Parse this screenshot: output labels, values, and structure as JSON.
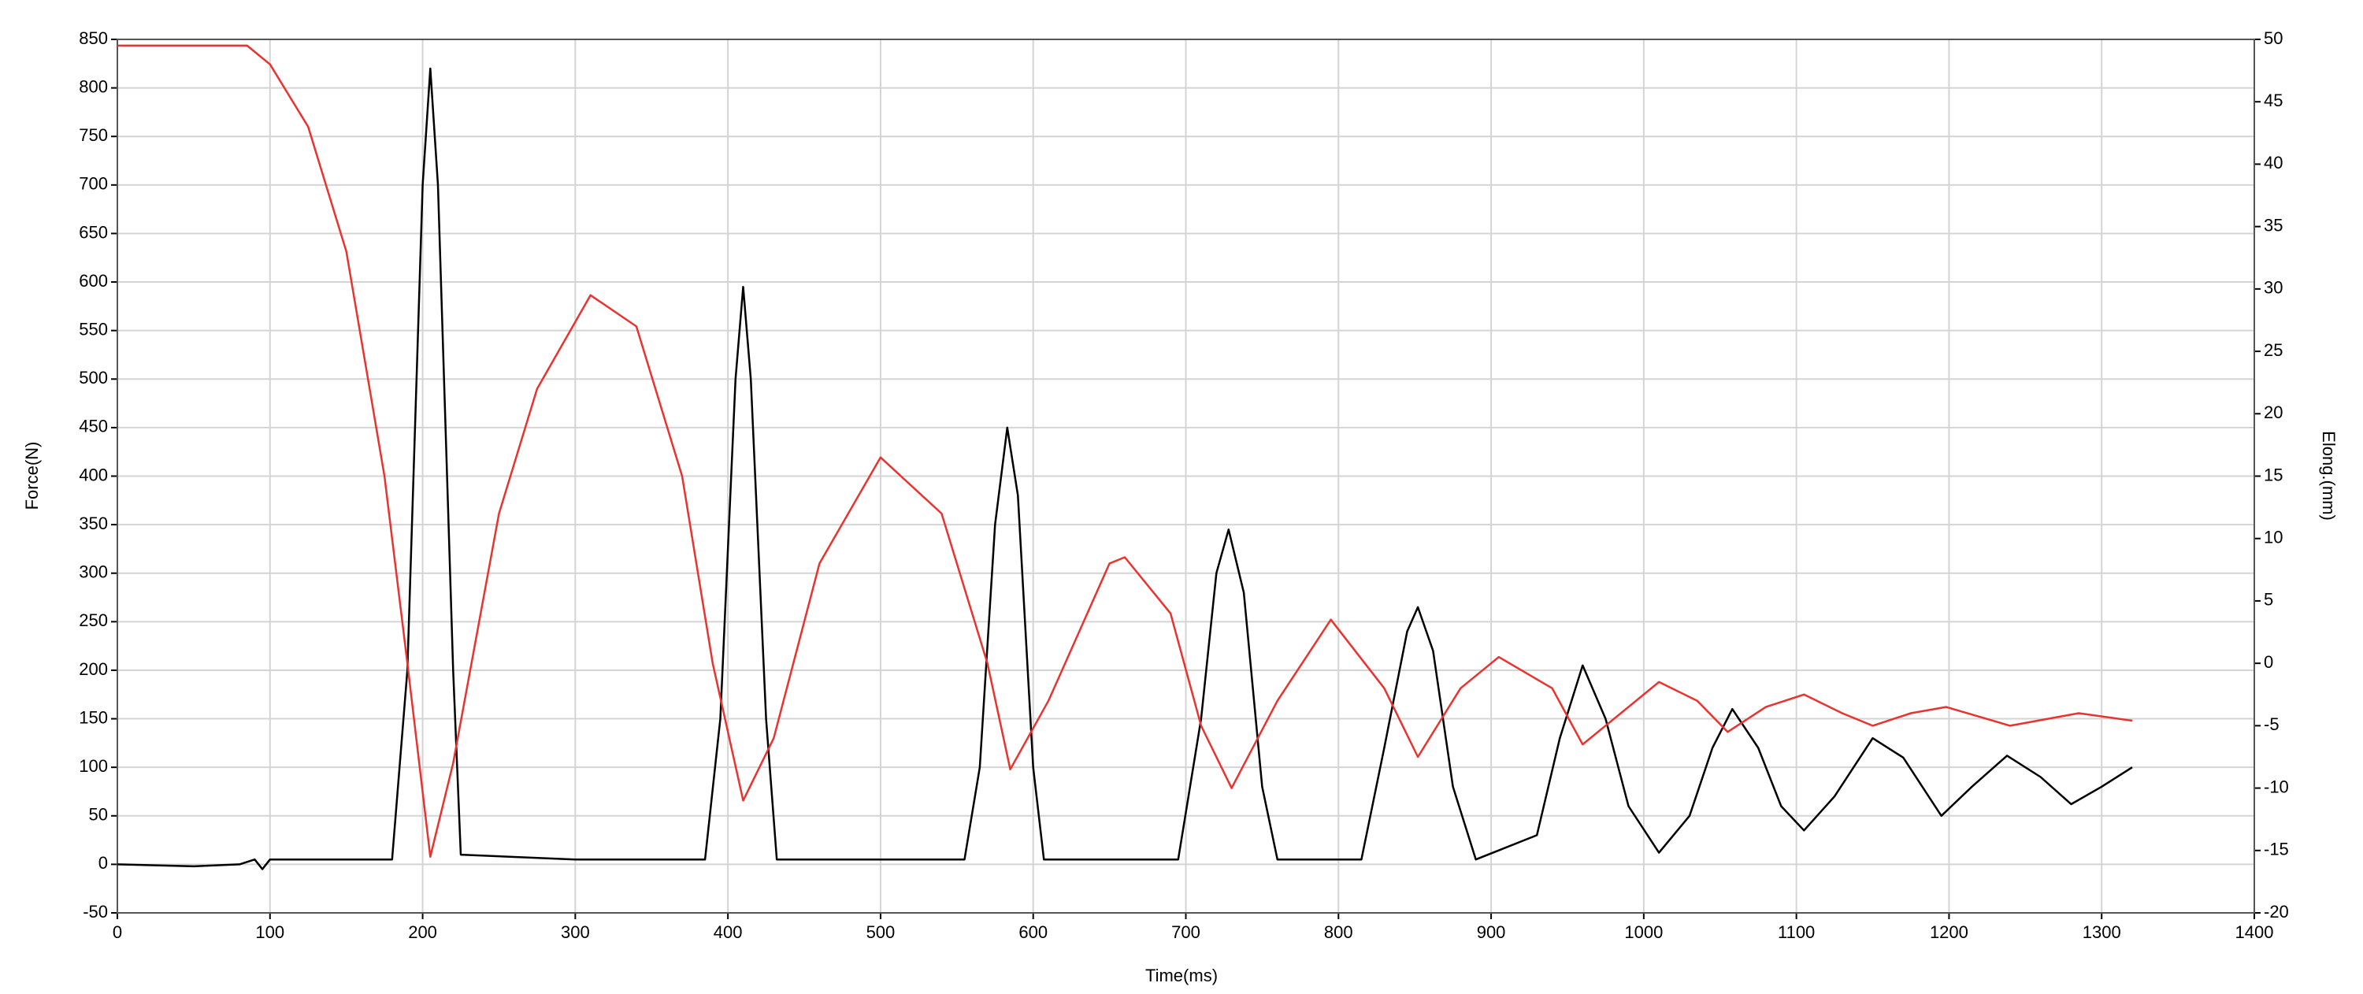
{
  "chart_data": {
    "type": "line",
    "xlabel": "Time(ms)",
    "ylabel": "Force(N)",
    "y2label": "Elong.(mm)",
    "xlim": [
      0,
      1400
    ],
    "xticks": [
      0,
      100,
      200,
      300,
      400,
      500,
      600,
      700,
      800,
      900,
      1000,
      1100,
      1200,
      1300,
      1400
    ],
    "ylim": [
      -50,
      850
    ],
    "yticks": [
      -50,
      0,
      50,
      100,
      150,
      200,
      250,
      300,
      350,
      400,
      450,
      500,
      550,
      600,
      650,
      700,
      750,
      800,
      850
    ],
    "y2lim": [
      -20,
      50
    ],
    "y2ticks": [
      -20,
      -15,
      -10,
      -5,
      0,
      5,
      10,
      15,
      20,
      25,
      30,
      35,
      40,
      45,
      50
    ],
    "grid": true,
    "series": [
      {
        "name": "Force(N)",
        "color": "#000000",
        "axis": "y",
        "x": [
          0,
          50,
          80,
          90,
          95,
          100,
          150,
          180,
          190,
          200,
          205,
          210,
          220,
          225,
          300,
          385,
          395,
          405,
          410,
          415,
          425,
          432,
          500,
          555,
          565,
          575,
          583,
          590,
          600,
          607,
          650,
          695,
          710,
          720,
          728,
          738,
          750,
          760,
          815,
          830,
          845,
          852,
          862,
          875,
          890,
          930,
          945,
          960,
          975,
          990,
          1010,
          1030,
          1045,
          1058,
          1075,
          1090,
          1105,
          1125,
          1150,
          1170,
          1195,
          1215,
          1238,
          1260,
          1280,
          1300,
          1320
        ],
        "values": [
          0,
          -2,
          0,
          5,
          -5,
          5,
          5,
          5,
          200,
          700,
          820,
          700,
          200,
          10,
          5,
          5,
          150,
          500,
          595,
          500,
          150,
          5,
          5,
          5,
          100,
          350,
          450,
          380,
          100,
          5,
          5,
          5,
          150,
          300,
          345,
          280,
          80,
          5,
          5,
          120,
          240,
          265,
          220,
          80,
          5,
          30,
          130,
          205,
          150,
          60,
          12,
          50,
          120,
          160,
          120,
          60,
          35,
          70,
          130,
          110,
          50,
          80,
          112,
          90,
          62,
          80,
          100
        ]
      },
      {
        "name": "Elong.(mm)",
        "color": "#e8332f",
        "axis": "y2",
        "x": [
          0,
          85,
          100,
          125,
          150,
          175,
          190,
          205,
          220,
          250,
          275,
          310,
          340,
          370,
          390,
          410,
          430,
          460,
          500,
          540,
          570,
          585,
          610,
          650,
          660,
          690,
          710,
          730,
          760,
          795,
          830,
          852,
          880,
          905,
          940,
          960,
          985,
          1010,
          1035,
          1055,
          1080,
          1105,
          1130,
          1150,
          1175,
          1198,
          1240,
          1285,
          1320
        ],
        "values": [
          49.5,
          49.5,
          48,
          43,
          33,
          15,
          0,
          -15.5,
          -8,
          12,
          22,
          29.5,
          27,
          15,
          0,
          -11,
          -6,
          8,
          16.5,
          12,
          0,
          -8.5,
          -3,
          8,
          8.5,
          4,
          -5,
          -10,
          -3,
          3.5,
          -2,
          -7.5,
          -2,
          0.5,
          -2,
          -6.5,
          -4,
          -1.5,
          -3,
          -5.5,
          -3.5,
          -2.5,
          -4,
          -5,
          -4,
          -3.5,
          -5,
          -4,
          -4.6
        ]
      }
    ]
  }
}
